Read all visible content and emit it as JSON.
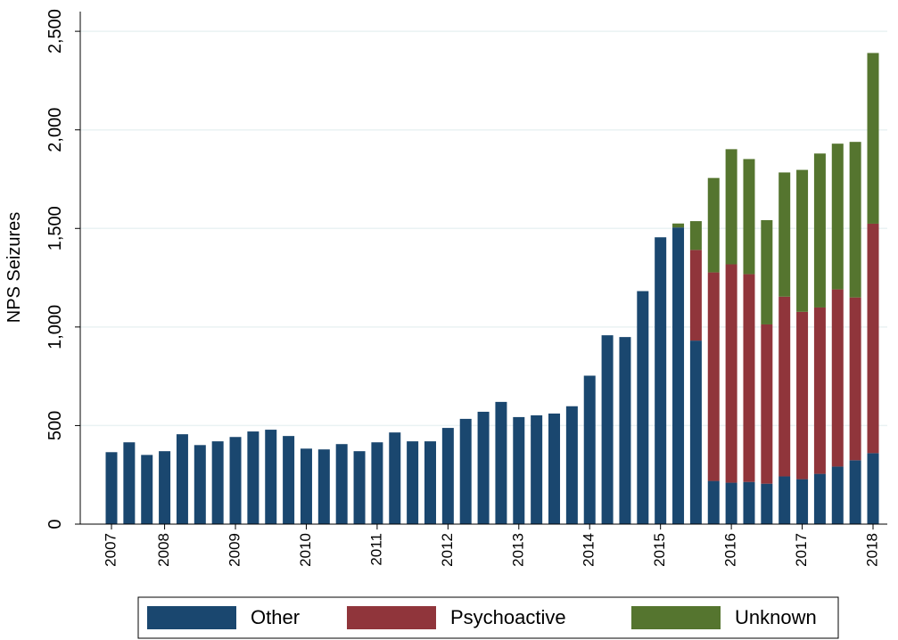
{
  "chart_data": {
    "type": "stacked-bar",
    "ylabel": "NPS Seizures",
    "categories": [
      "2007",
      null,
      null,
      "2008",
      null,
      null,
      null,
      "2009",
      null,
      null,
      null,
      "2010",
      null,
      null,
      null,
      "2011",
      null,
      null,
      null,
      "2012",
      null,
      null,
      null,
      "2013",
      null,
      null,
      null,
      "2014",
      null,
      null,
      null,
      "2015",
      null,
      null,
      null,
      "2016",
      null,
      null,
      null,
      "2017",
      null,
      null,
      null,
      "2018"
    ],
    "series": [
      {
        "name": "Other",
        "color": "#1a476f",
        "values": [
          365,
          415,
          351,
          370,
          456,
          401,
          420,
          442,
          470,
          479,
          447,
          383,
          379,
          406,
          370,
          415,
          465,
          420,
          420,
          488,
          534,
          570,
          620,
          543,
          552,
          561,
          598,
          753,
          958,
          949,
          1182,
          1455,
          1505,
          931,
          219,
          210,
          214,
          205,
          242,
          228,
          255,
          292,
          324,
          360
        ]
      },
      {
        "name": "Psychoactive",
        "color": "#90353b",
        "values": [
          0,
          0,
          0,
          0,
          0,
          0,
          0,
          0,
          0,
          0,
          0,
          0,
          0,
          0,
          0,
          0,
          0,
          0,
          0,
          0,
          0,
          0,
          0,
          0,
          0,
          0,
          0,
          0,
          0,
          0,
          0,
          0,
          0,
          460,
          1058,
          1108,
          1054,
          808,
          912,
          849,
          844,
          899,
          826,
          1164
        ]
      },
      {
        "name": "Unknown",
        "color": "#55752f",
        "values": [
          0,
          0,
          0,
          0,
          0,
          0,
          0,
          0,
          0,
          0,
          0,
          0,
          0,
          0,
          0,
          0,
          0,
          0,
          0,
          0,
          0,
          0,
          0,
          0,
          0,
          0,
          0,
          0,
          0,
          0,
          0,
          0,
          20,
          146,
          479,
          584,
          584,
          529,
          630,
          720,
          781,
          739,
          789,
          866
        ]
      }
    ],
    "ylim": [
      0,
      2600
    ],
    "yticks": [
      0,
      500,
      {
        "value": 1000,
        "label": "1,000"
      },
      {
        "value": 1500,
        "label": "1,500"
      },
      {
        "value": 2000,
        "label": "2,000"
      },
      {
        "value": 2500,
        "label": "2,500"
      }
    ],
    "grid": true
  }
}
